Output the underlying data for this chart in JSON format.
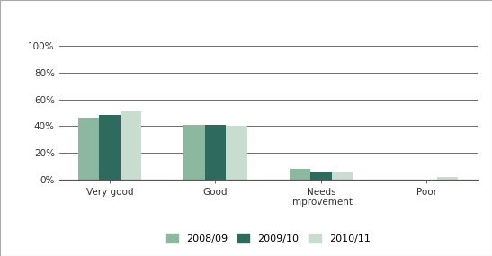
{
  "categories": [
    "Very good",
    "Good",
    "Needs\nimprovement",
    "Poor"
  ],
  "series": {
    "2008/09": [
      46,
      41,
      8,
      0
    ],
    "2009/10": [
      48,
      41,
      6,
      0
    ],
    "2010/11": [
      51,
      40,
      5,
      2
    ]
  },
  "series_order": [
    "2008/09",
    "2009/10",
    "2010/11"
  ],
  "colors": {
    "2008/09": "#8db8a0",
    "2009/10": "#2e6b5e",
    "2010/11": "#c8ddd0"
  },
  "ylim": [
    0,
    100
  ],
  "yticks": [
    0,
    20,
    40,
    60,
    80,
    100
  ],
  "ytick_labels": [
    "0%",
    "20%",
    "40%",
    "60%",
    "80%",
    "100%"
  ],
  "background_color": "#ffffff",
  "bar_width": 0.2,
  "figure_border_color": "#aaaaaa"
}
